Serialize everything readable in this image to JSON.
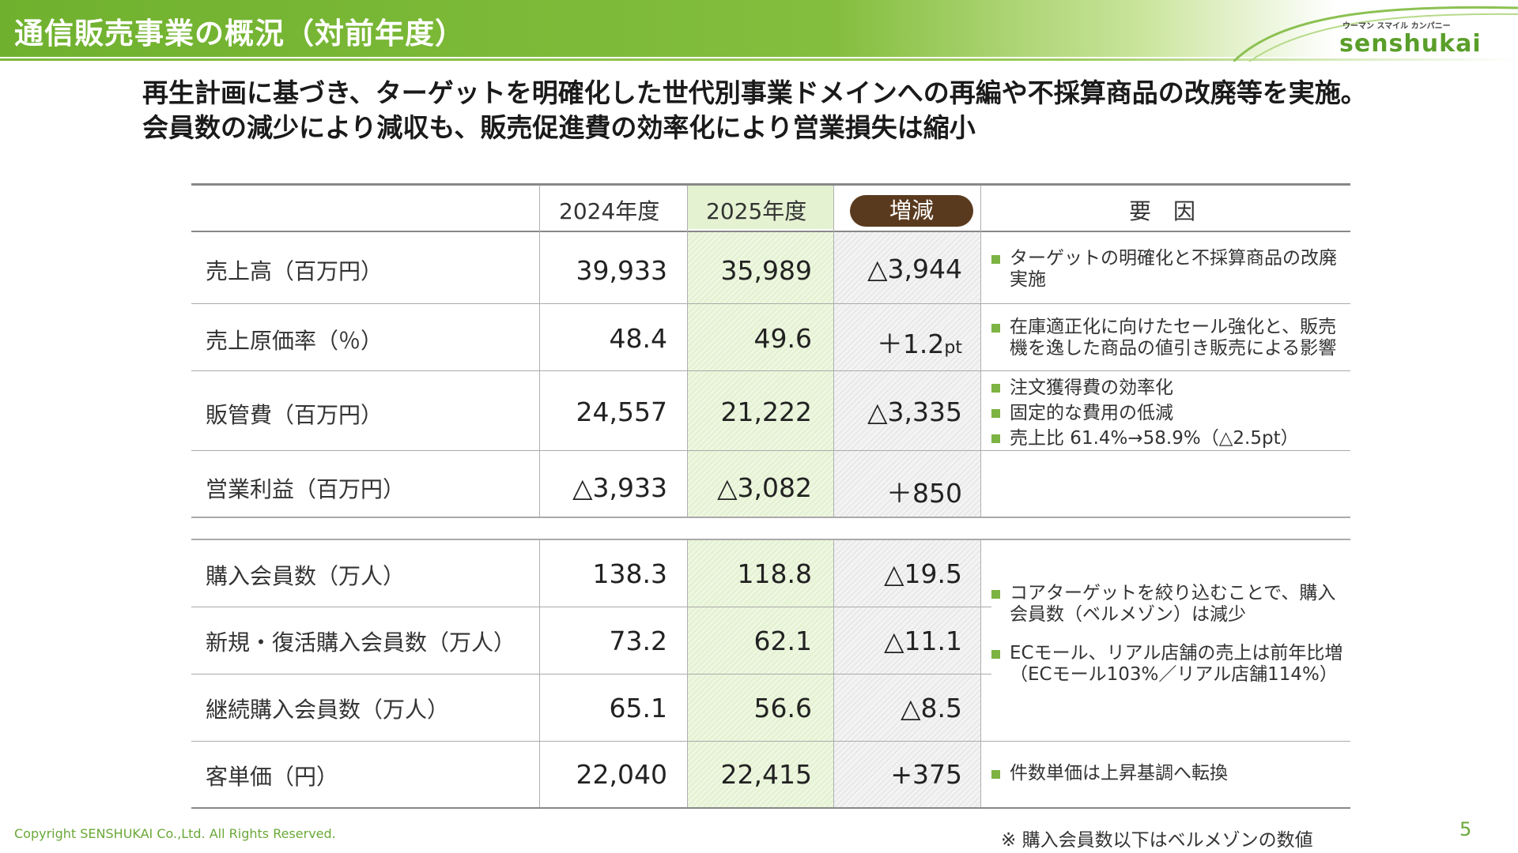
{
  "header": {
    "title": "通信販売事業の概況（対前年度）",
    "logo_tagline": "ウーマン スマイル カンパニー",
    "logo_text": "senshukai"
  },
  "headline": {
    "line1": "再生計画に基づき、ターゲットを明確化した世代別事業ドメインへの再編や不採算商品の改廃等を実施。",
    "line2": "会員数の減少により減収も、販売促進費の効率化により営業損失は縮小"
  },
  "table": {
    "headers": {
      "fy2024": "2024年度",
      "fy2025": "2025年度",
      "change": "増減",
      "factors": "要　因"
    },
    "rows": [
      {
        "label": "売上高（百万円）",
        "fy2024": "39,933",
        "fy2025": "35,989",
        "change": "△3,944",
        "change_unit": ""
      },
      {
        "label": "売上原価率（％）",
        "fy2024": "48.4",
        "fy2025": "49.6",
        "change": "＋1.2",
        "change_unit": "pt"
      },
      {
        "label": "販管費（百万円）",
        "fy2024": "24,557",
        "fy2025": "21,222",
        "change": "△3,335",
        "change_unit": ""
      },
      {
        "label": "営業利益（百万円）",
        "fy2024": "△3,933",
        "fy2025": "△3,082",
        "change": "＋850",
        "change_unit": ""
      },
      {
        "label": "購入会員数（万人）",
        "fy2024": "138.3",
        "fy2025": "118.8",
        "change": "△19.5",
        "change_unit": ""
      },
      {
        "label": "新規・復活購入会員数（万人）",
        "fy2024": "73.2",
        "fy2025": "62.1",
        "change": "△11.1",
        "change_unit": ""
      },
      {
        "label": "継続購入会員数（万人）",
        "fy2024": "65.1",
        "fy2025": "56.6",
        "change": "△8.5",
        "change_unit": ""
      },
      {
        "label": "客単価（円）",
        "fy2024": "22,040",
        "fy2025": "22,415",
        "change": "+375",
        "change_unit": ""
      }
    ],
    "factors": {
      "sales": [
        "ターゲットの明確化と不採算商品の改廃実施"
      ],
      "cost_rate": [
        "在庫適正化に向けたセール強化と、販売機を逸した商品の値引き販売による影響"
      ],
      "sga": [
        "注文獲得費の効率化",
        "固定的な費用の低減",
        "売上比 61.4%→58.9%（△2.5pt）"
      ],
      "members": [
        "コアターゲットを絞り込むことで、購入会員数（ベルメゾン）は減少",
        "ECモール、リアル店舗の売上は前年比増（ECモール103%／リアル店舗114%）"
      ],
      "unit_price": [
        "件数単価は上昇基調へ転換"
      ]
    }
  },
  "footer": {
    "copyright": "Copyright SENSHUKAI Co.,Ltd. All Rights Reserved.",
    "note": "※ 購入会員数以下はベルメゾンの数値",
    "page_number": "5"
  },
  "colors": {
    "brand_green": "#6fb12e",
    "highlight_green": "#e4f2d2",
    "badge_brown": "#5a3a1e"
  }
}
